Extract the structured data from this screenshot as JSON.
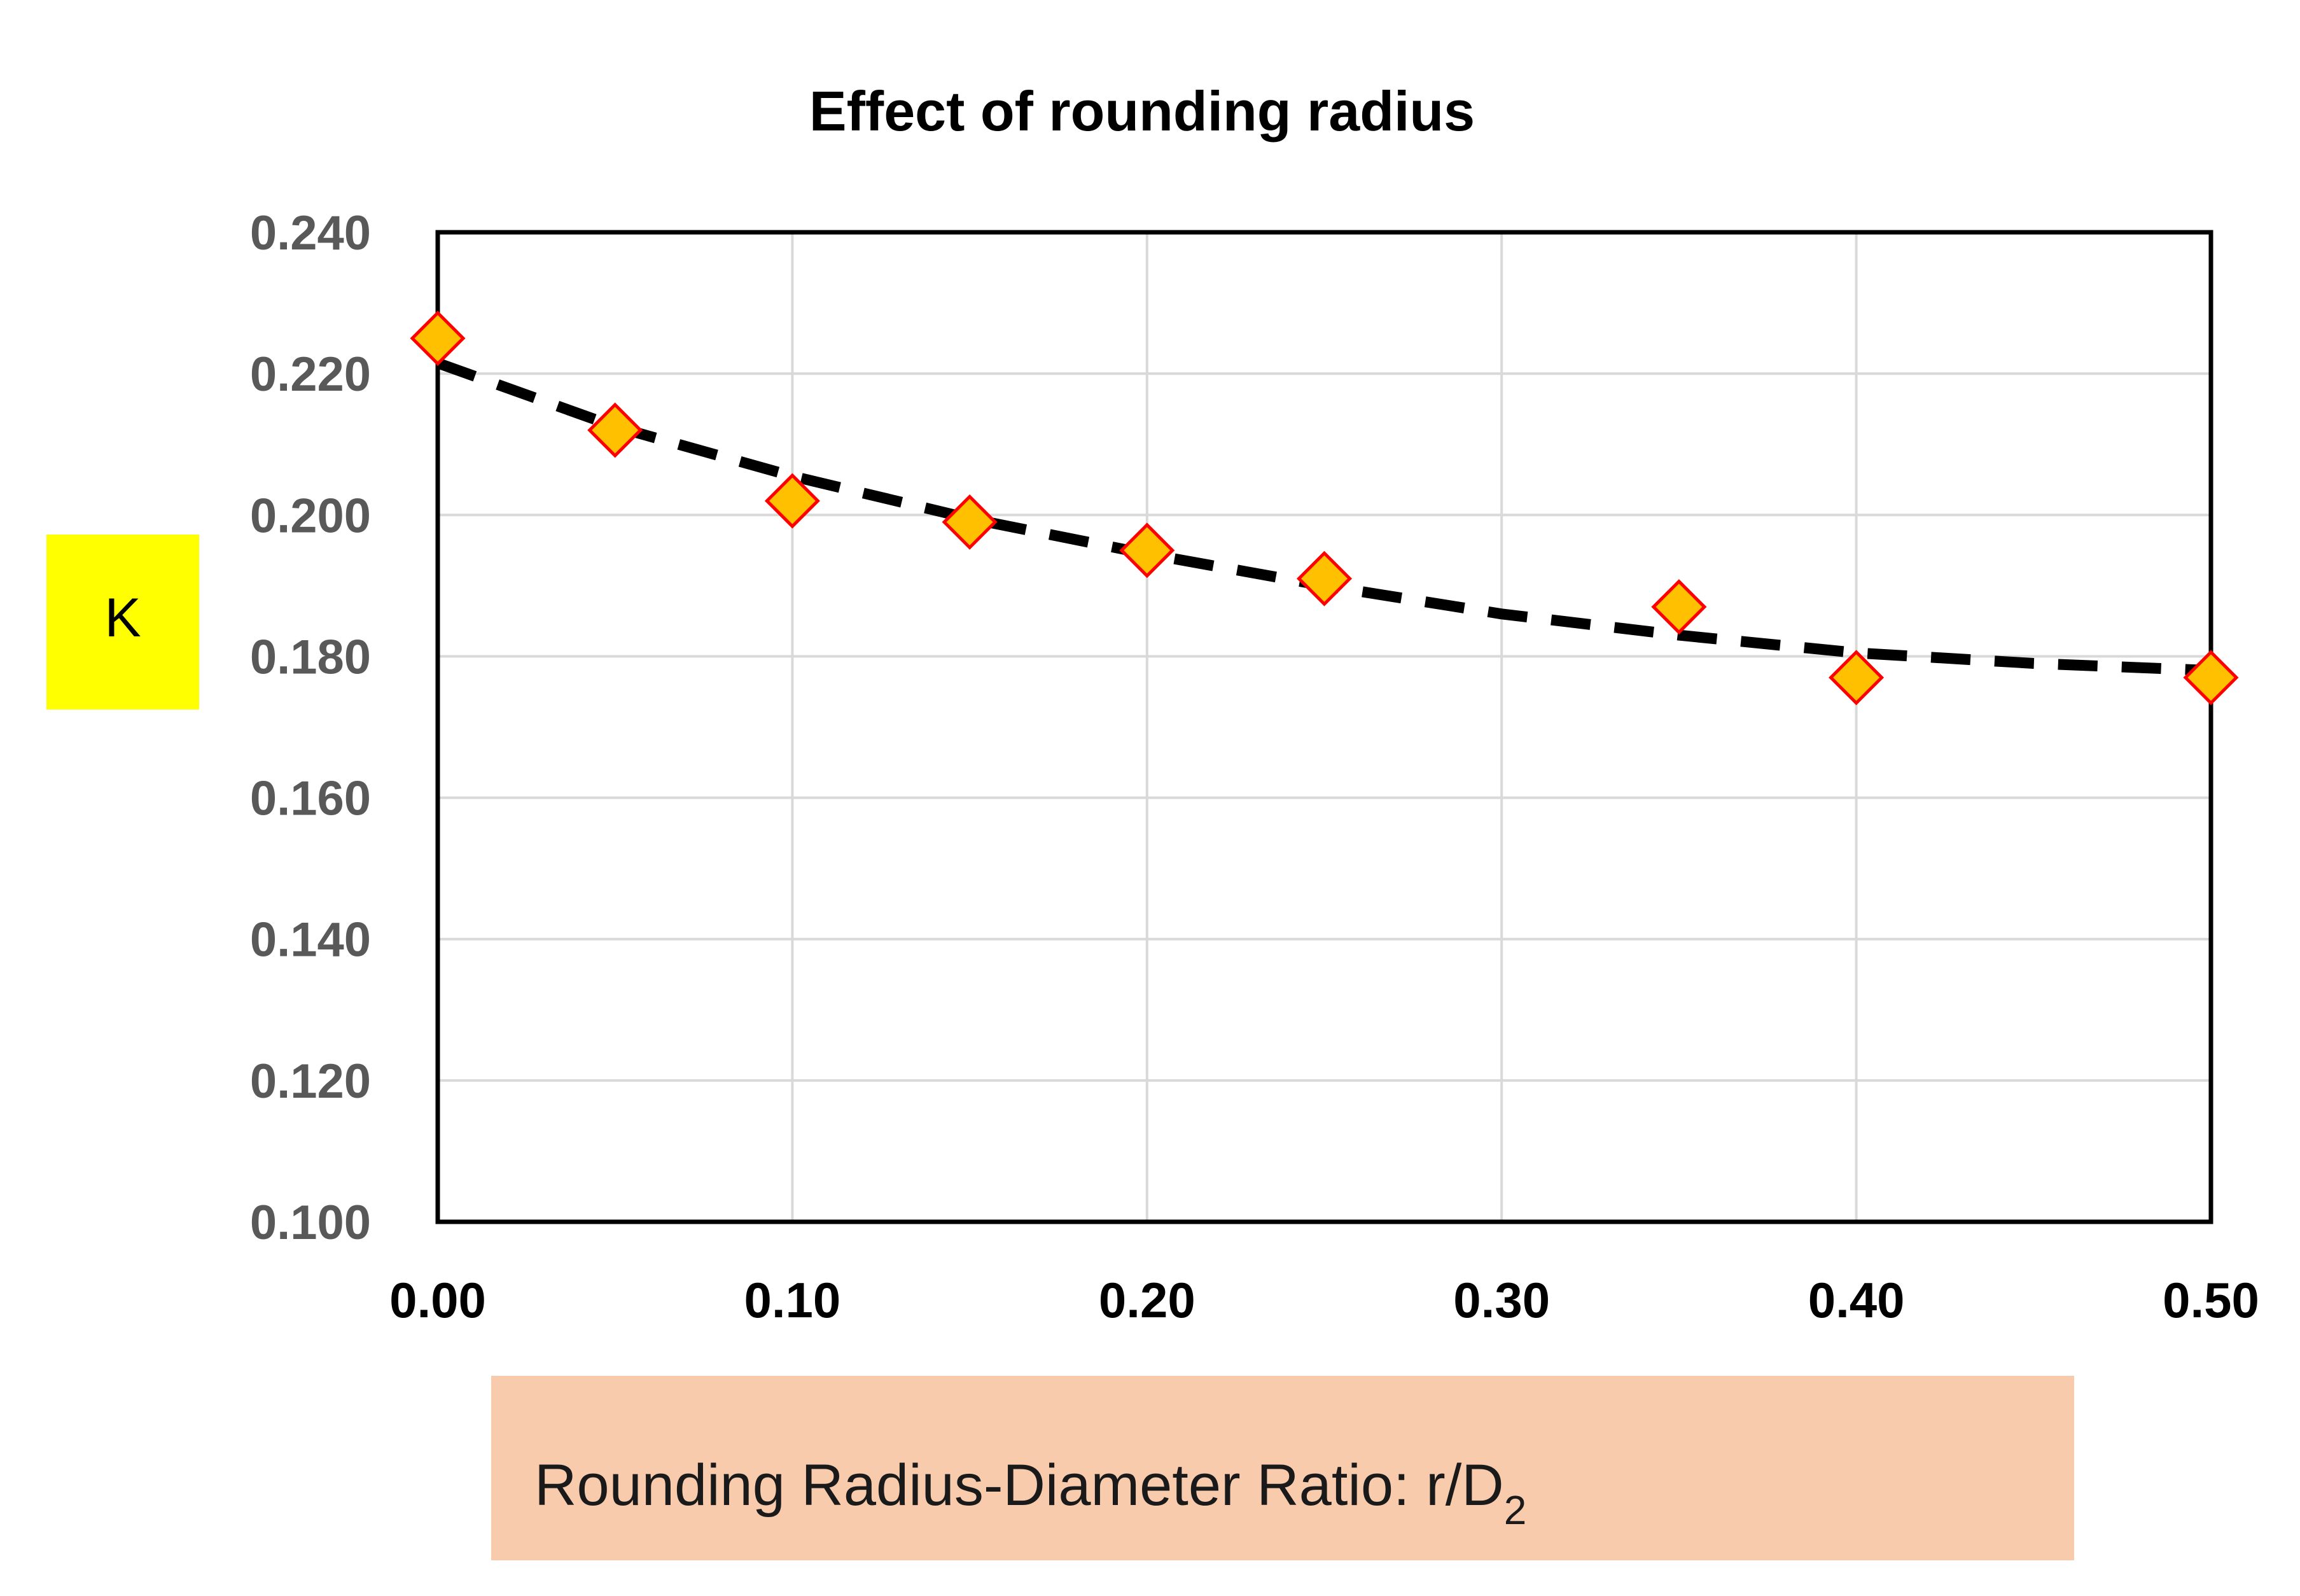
{
  "chart_data": {
    "type": "scatter",
    "title": "Effect of rounding radius",
    "xlabel": {
      "prefix": "Rounding Radius-Diameter Ratio: r/D",
      "subscript": "2",
      "background": "#f8cbad"
    },
    "ylabel": {
      "text": "K",
      "background": "#ffff00"
    },
    "xlim": [
      0,
      0.5
    ],
    "ylim": [
      0.1,
      0.24
    ],
    "x_ticks": [
      0.0,
      0.1,
      0.2,
      0.3,
      0.4,
      0.5
    ],
    "x_tick_labels": [
      "0.00",
      "0.10",
      "0.20",
      "0.30",
      "0.40",
      "0.50"
    ],
    "y_ticks": [
      0.1,
      0.12,
      0.14,
      0.16,
      0.18,
      0.2,
      0.22,
      0.24
    ],
    "y_tick_labels": [
      "0.100",
      "0.120",
      "0.140",
      "0.160",
      "0.180",
      "0.200",
      "0.220",
      "0.240"
    ],
    "grid": true,
    "series": [
      {
        "name": "K",
        "marker": "diamond",
        "fill_color": "#ffc000",
        "edge_color": "#ff0000",
        "x": [
          0.0,
          0.05,
          0.1,
          0.15,
          0.2,
          0.25,
          0.35,
          0.4,
          0.5
        ],
        "y": [
          0.225,
          0.212,
          0.202,
          0.199,
          0.195,
          0.191,
          0.187,
          0.177,
          0.177
        ]
      }
    ],
    "trendline": {
      "style": "dashed",
      "color": "#000000",
      "x": [
        0.0,
        0.05,
        0.1,
        0.15,
        0.2,
        0.25,
        0.3,
        0.35,
        0.4,
        0.45,
        0.5
      ],
      "y": [
        0.2215,
        0.2125,
        0.2055,
        0.1995,
        0.1945,
        0.19,
        0.186,
        0.183,
        0.1805,
        0.179,
        0.178
      ]
    }
  }
}
